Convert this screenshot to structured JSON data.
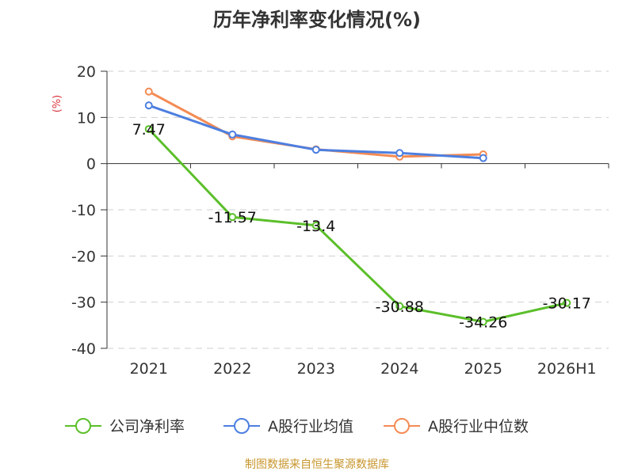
{
  "chart_data": {
    "type": "line",
    "title": "历年净利率变化情况(%)",
    "unit": "(%)",
    "categories": [
      "2021",
      "2022",
      "2023",
      "2024",
      "2025",
      "2026H1"
    ],
    "ylim": [
      -40,
      20
    ],
    "yticks": [
      "20",
      "10",
      "0",
      "-10",
      "-20",
      "-30",
      "-40"
    ],
    "grid": true,
    "legend_position": "bottom",
    "series": [
      {
        "name": "公司净利率",
        "color": "#5bbf2a",
        "values": [
          7.47,
          -11.57,
          -13.4,
          -30.88,
          -34.26,
          -30.17
        ],
        "labels": [
          "7.47",
          "-11.57",
          "-13.4",
          "-30.88",
          "-34.26",
          "-30.17"
        ]
      },
      {
        "name": "A股行业均值",
        "color": "#4d7fe0",
        "values": [
          12.6,
          6.3,
          3.0,
          2.3,
          1.2,
          null
        ]
      },
      {
        "name": "A股行业中位数",
        "color": "#f48b54",
        "values": [
          15.6,
          5.9,
          3.1,
          1.5,
          2.0,
          null
        ]
      }
    ],
    "source": "制图数据来自恒生聚源数据库"
  }
}
